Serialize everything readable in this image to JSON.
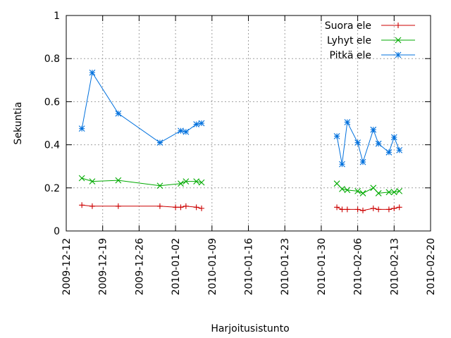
{
  "chart_data": {
    "type": "line",
    "xlabel": "Harjoitusistunto",
    "ylabel": "Sekuntia",
    "ylim": [
      0,
      1
    ],
    "xlim": [
      "2009-12-12",
      "2010-02-20"
    ],
    "x_ticks": [
      "2009-12-12",
      "2009-12-19",
      "2009-12-26",
      "2010-01-02",
      "2010-01-09",
      "2010-01-16",
      "2010-01-23",
      "2010-01-30",
      "2010-02-06",
      "2010-02-13",
      "2010-02-20"
    ],
    "y_ticks": [
      "0",
      "0.2",
      "0.4",
      "0.6",
      "0.8",
      "1"
    ],
    "grid": true,
    "legend_position": "top-right",
    "series": [
      {
        "name": "Suora ele",
        "color": "#cc0000",
        "marker": "plus",
        "segments": [
          {
            "x": [
              "2009-12-15",
              "2009-12-17",
              "2009-12-22",
              "2009-12-30",
              "2010-01-02",
              "2010-01-03",
              "2010-01-04",
              "2010-01-06",
              "2010-01-07"
            ],
            "y": [
              0.12,
              0.115,
              0.115,
              0.115,
              0.11,
              0.11,
              0.115,
              0.11,
              0.105
            ]
          },
          {
            "x": [
              "2010-02-02",
              "2010-02-03",
              "2010-02-04",
              "2010-02-06",
              "2010-02-07",
              "2010-02-09",
              "2010-02-10",
              "2010-02-12",
              "2010-02-13",
              "2010-02-14"
            ],
            "y": [
              0.11,
              0.1,
              0.1,
              0.1,
              0.095,
              0.105,
              0.1,
              0.1,
              0.105,
              0.11
            ]
          }
        ]
      },
      {
        "name": "Lyhyt ele",
        "color": "#00aa00",
        "marker": "cross",
        "segments": [
          {
            "x": [
              "2009-12-15",
              "2009-12-17",
              "2009-12-22",
              "2009-12-30",
              "2010-01-03",
              "2010-01-04",
              "2010-01-06",
              "2010-01-07"
            ],
            "y": [
              0.245,
              0.23,
              0.235,
              0.21,
              0.22,
              0.23,
              0.23,
              0.225
            ]
          },
          {
            "x": [
              "2010-02-02",
              "2010-02-03",
              "2010-02-04",
              "2010-02-06",
              "2010-02-07",
              "2010-02-09",
              "2010-02-10",
              "2010-02-12",
              "2010-02-13",
              "2010-02-14"
            ],
            "y": [
              0.22,
              0.195,
              0.19,
              0.185,
              0.175,
              0.2,
              0.175,
              0.18,
              0.18,
              0.185
            ]
          }
        ]
      },
      {
        "name": "Pitkä ele",
        "color": "#0070dd",
        "marker": "star",
        "segments": [
          {
            "x": [
              "2009-12-15",
              "2009-12-17",
              "2009-12-22",
              "2009-12-30",
              "2010-01-03",
              "2010-01-04",
              "2010-01-06",
              "2010-01-07"
            ],
            "y": [
              0.475,
              0.735,
              0.545,
              0.41,
              0.465,
              0.46,
              0.495,
              0.5
            ]
          },
          {
            "x": [
              "2010-02-02",
              "2010-02-03",
              "2010-02-04",
              "2010-02-06",
              "2010-02-07",
              "2010-02-09",
              "2010-02-10",
              "2010-02-12",
              "2010-02-13",
              "2010-02-14"
            ],
            "y": [
              0.44,
              0.31,
              0.505,
              0.41,
              0.32,
              0.47,
              0.405,
              0.365,
              0.435,
              0.375
            ]
          }
        ]
      }
    ]
  }
}
